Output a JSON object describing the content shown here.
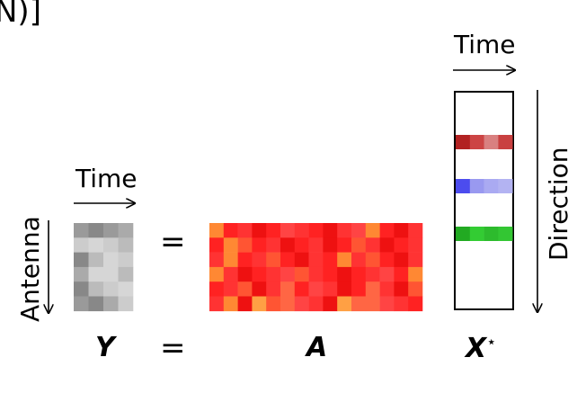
{
  "header_fragment": "N)]",
  "labels": {
    "time_top": "Time",
    "time_left": "Time",
    "antenna": "Antenna",
    "direction": "Direction",
    "equals": "=",
    "Y": "Y",
    "A": "A",
    "X": "X",
    "X_sup": "⋆"
  },
  "colors": {
    "Y_shades": [
      "#888888",
      "#9a9a9a",
      "#aaaaaa",
      "#bbbbbb",
      "#cccccc",
      "#d6d6d6"
    ],
    "A_shades": [
      "#ff2222",
      "#ff3333",
      "#ee1111",
      "#ff4444",
      "#ff5533",
      "#ff8833",
      "#ffa044",
      "#ff6644"
    ],
    "X_rows": {
      "red": [
        "#b22222",
        "#cc4444",
        "#d98080",
        "#c94040"
      ],
      "blue": [
        "#4c4cee",
        "#9999f0",
        "#aaaaf2",
        "#b3b3f2"
      ],
      "green": [
        "#22aa22",
        "#33cc33",
        "#2dbb2d",
        "#33c633"
      ]
    }
  },
  "matrices": {
    "Y": [
      [
        1,
        0,
        1,
        2
      ],
      [
        4,
        5,
        4,
        3
      ],
      [
        0,
        3,
        5,
        4
      ],
      [
        2,
        5,
        5,
        3
      ],
      [
        0,
        3,
        4,
        5
      ],
      [
        1,
        0,
        2,
        4
      ]
    ],
    "A": [
      [
        5,
        0,
        1,
        2,
        0,
        3,
        1,
        0,
        2,
        1,
        3,
        5,
        0,
        2,
        1
      ],
      [
        0,
        5,
        4,
        0,
        1,
        2,
        0,
        1,
        2,
        0,
        4,
        1,
        2,
        0,
        1
      ],
      [
        1,
        5,
        0,
        1,
        4,
        0,
        2,
        1,
        0,
        5,
        1,
        4,
        0,
        2,
        1
      ],
      [
        5,
        1,
        2,
        0,
        1,
        3,
        4,
        1,
        0,
        2,
        0,
        1,
        3,
        0,
        5
      ],
      [
        0,
        1,
        4,
        2,
        1,
        7,
        0,
        3,
        1,
        2,
        0,
        7,
        1,
        2,
        4
      ],
      [
        1,
        5,
        2,
        6,
        4,
        7,
        3,
        1,
        2,
        6,
        7,
        7,
        3,
        1,
        0
      ]
    ]
  }
}
